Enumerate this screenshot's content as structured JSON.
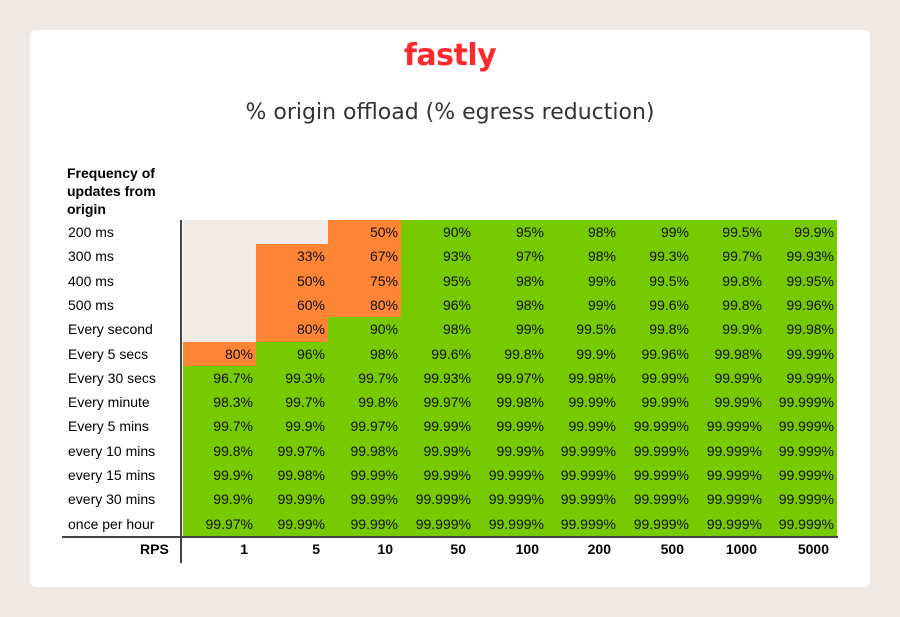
{
  "logo": "fastly",
  "chart_data": {
    "type": "table",
    "title": "% origin offload (% egress reduction)",
    "ylabel": "Frequency of updates from origin",
    "xlabel": "RPS",
    "colors": {
      "blank": "#f1ebe8",
      "low": "#fd8535",
      "high": "#77c900"
    },
    "columns": [
      "1",
      "5",
      "10",
      "50",
      "100",
      "200",
      "500",
      "1000",
      "5000"
    ],
    "rows": [
      {
        "label": "200 ms",
        "values": [
          null,
          null,
          "50%",
          "90%",
          "95%",
          "98%",
          "99%",
          "99.5%",
          "99.9%"
        ]
      },
      {
        "label": "300 ms",
        "values": [
          null,
          "33%",
          "67%",
          "93%",
          "97%",
          "98%",
          "99.3%",
          "99.7%",
          "99.93%"
        ]
      },
      {
        "label": "400 ms",
        "values": [
          null,
          "50%",
          "75%",
          "95%",
          "98%",
          "99%",
          "99.5%",
          "99.8%",
          "99.95%"
        ]
      },
      {
        "label": "500 ms",
        "values": [
          null,
          "60%",
          "80%",
          "96%",
          "98%",
          "99%",
          "99.6%",
          "99.8%",
          "99.96%"
        ]
      },
      {
        "label": "Every second",
        "values": [
          null,
          "80%",
          "90%",
          "98%",
          "99%",
          "99.5%",
          "99.8%",
          "99.9%",
          "99.98%"
        ]
      },
      {
        "label": "Every 5 secs",
        "values": [
          "80%",
          "96%",
          "98%",
          "99.6%",
          "99.8%",
          "99.9%",
          "99.96%",
          "99.98%",
          "99.99%"
        ]
      },
      {
        "label": "Every 30 secs",
        "values": [
          "96.7%",
          "99.3%",
          "99.7%",
          "99.93%",
          "99.97%",
          "99.98%",
          "99.99%",
          "99.99%",
          "99.99%"
        ]
      },
      {
        "label": "Every minute",
        "values": [
          "98.3%",
          "99.7%",
          "99.8%",
          "99.97%",
          "99.98%",
          "99.99%",
          "99.99%",
          "99.99%",
          "99.999%"
        ]
      },
      {
        "label": "Every 5 mins",
        "values": [
          "99.7%",
          "99.9%",
          "99.97%",
          "99.99%",
          "99.99%",
          "99.99%",
          "99.999%",
          "99.999%",
          "99.999%"
        ]
      },
      {
        "label": "every 10 mins",
        "values": [
          "99.8%",
          "99.97%",
          "99.98%",
          "99.99%",
          "99.99%",
          "99.999%",
          "99.999%",
          "99.999%",
          "99.999%"
        ]
      },
      {
        "label": "every 15 mins",
        "values": [
          "99.9%",
          "99.98%",
          "99.99%",
          "99.99%",
          "99.999%",
          "99.999%",
          "99.999%",
          "99.999%",
          "99.999%"
        ]
      },
      {
        "label": "every 30 mins",
        "values": [
          "99.9%",
          "99.99%",
          "99.99%",
          "99.999%",
          "99.999%",
          "99.999%",
          "99.999%",
          "99.999%",
          "99.999%"
        ]
      },
      {
        "label": "once per hour",
        "values": [
          "99.97%",
          "99.99%",
          "99.99%",
          "99.999%",
          "99.999%",
          "99.999%",
          "99.999%",
          "99.999%",
          "99.999%"
        ]
      }
    ]
  }
}
